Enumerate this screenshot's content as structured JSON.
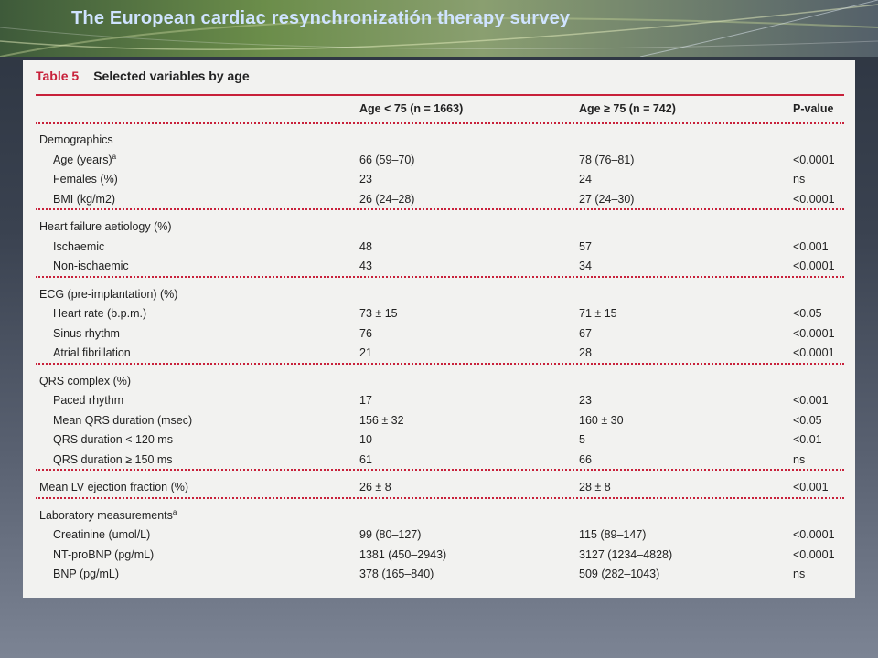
{
  "slide": {
    "title": "The European cardiac resynchronizatión therapy survey"
  },
  "table": {
    "number": "Table 5",
    "caption": "Selected variables by age",
    "headers": [
      "",
      "Age < 75 (n = 1663)",
      "Age ≥ 75 (n = 742)",
      "P-value"
    ],
    "sections": [
      {
        "label": "Demographics",
        "rows": [
          {
            "label": "Age (years)",
            "sup": "a",
            "v1": "66 (59–70)",
            "v2": "78 (76–81)",
            "p": "<0.0001"
          },
          {
            "label": "Females (%)",
            "v1": "23",
            "v2": "24",
            "p": "ns"
          },
          {
            "label": "BMI (kg/m2)",
            "v1": "26 (24–28)",
            "v2": "27 (24–30)",
            "p": "<0.0001"
          }
        ]
      },
      {
        "label": "Heart failure aetiology (%)",
        "rows": [
          {
            "label": "Ischaemic",
            "v1": "48",
            "v2": "57",
            "p": "<0.001"
          },
          {
            "label": "Non-ischaemic",
            "v1": "43",
            "v2": "34",
            "p": "<0.0001"
          }
        ]
      },
      {
        "label": "ECG (pre-implantation) (%)",
        "rows": [
          {
            "label": "Heart rate (b.p.m.)",
            "v1": "73 ± 15",
            "v2": "71 ± 15",
            "p": "<0.05"
          },
          {
            "label": "Sinus rhythm",
            "v1": "76",
            "v2": "67",
            "p": "<0.0001"
          },
          {
            "label": "Atrial fibrillation",
            "v1": "21",
            "v2": "28",
            "p": "<0.0001"
          }
        ]
      },
      {
        "label": "QRS complex (%)",
        "rows": [
          {
            "label": "Paced rhythm",
            "v1": "17",
            "v2": "23",
            "p": "<0.001"
          },
          {
            "label": "Mean QRS duration (msec)",
            "v1": "156 ± 32",
            "v2": "160 ± 30",
            "p": "<0.05"
          },
          {
            "label": "QRS duration < 120 ms",
            "v1": "10",
            "v2": "5",
            "p": "<0.01"
          },
          {
            "label": "QRS duration ≥ 150 ms",
            "v1": "61",
            "v2": "66",
            "p": "ns"
          }
        ]
      },
      {
        "label": "Mean LV ejection fraction (%)",
        "v1": "26 ± 8",
        "v2": "28 ± 8",
        "p": "<0.001",
        "rows": []
      },
      {
        "label": "Laboratory measurements",
        "sup": "a",
        "rows": [
          {
            "label": "Creatinine (umol/L)",
            "v1": "99 (80–127)",
            "v2": "115 (89–147)",
            "p": "<0.0001"
          },
          {
            "label": "NT-proBNP (pg/mL)",
            "v1": "1381 (450–2943)",
            "v2": "3127 (1234–4828)",
            "p": "<0.0001"
          },
          {
            "label": "BNP (pg/mL)",
            "v1": "378 (165–840)",
            "v2": "509 (282–1043)",
            "p": "ns"
          }
        ]
      }
    ]
  }
}
